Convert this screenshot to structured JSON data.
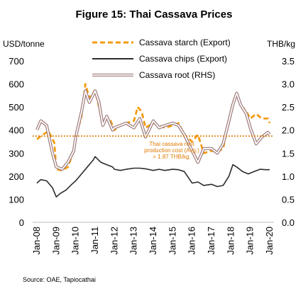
{
  "chart_data": {
    "type": "line",
    "title": "Figure 15: Thai Cassava Prices",
    "y_left_label": "USD/tonne",
    "y_right_label": "THB/kg",
    "ylim_left": [
      0,
      700
    ],
    "ylim_right": [
      0.0,
      3.5
    ],
    "left_ticks": [
      "0",
      "100",
      "200",
      "300",
      "400",
      "500",
      "600",
      "700"
    ],
    "right_ticks": [
      "0.0",
      "0.5",
      "1.0",
      "1.5",
      "2.0",
      "2.5",
      "3.0",
      "3.5"
    ],
    "x_ticks": [
      "Jan-08",
      "Jan-09",
      "Jan-10",
      "Jan-11",
      "Jan-12",
      "Jan-13",
      "Jan-14",
      "Jan-15",
      "Jan-16",
      "Jan-17",
      "Jan-18",
      "Jan-19",
      "Jan-20"
    ],
    "xlim": [
      "Jan-08",
      "Jan-20"
    ],
    "legend_position": "top-center",
    "series": [
      {
        "name": "Cassava starch (Export)",
        "axis": "left",
        "color": "#F39C12",
        "style": "dashed",
        "points": [
          [
            2008.0,
            360
          ],
          [
            2008.3,
            380
          ],
          [
            2008.6,
            395
          ],
          [
            2008.9,
            345
          ],
          [
            2009.0,
            230
          ],
          [
            2009.3,
            225
          ],
          [
            2009.6,
            240
          ],
          [
            2009.9,
            310
          ],
          [
            2010.0,
            370
          ],
          [
            2010.3,
            460
          ],
          [
            2010.5,
            600
          ],
          [
            2010.7,
            540
          ],
          [
            2011.0,
            570
          ],
          [
            2011.2,
            500
          ],
          [
            2011.4,
            420
          ],
          [
            2011.6,
            460
          ],
          [
            2011.8,
            440
          ],
          [
            2012.0,
            400
          ],
          [
            2012.3,
            420
          ],
          [
            2012.6,
            430
          ],
          [
            2013.0,
            440
          ],
          [
            2013.2,
            500
          ],
          [
            2013.4,
            480
          ],
          [
            2013.6,
            410
          ],
          [
            2014.0,
            430
          ],
          [
            2014.3,
            420
          ],
          [
            2014.6,
            410
          ],
          [
            2015.0,
            420
          ],
          [
            2015.3,
            430
          ],
          [
            2015.6,
            380
          ],
          [
            2016.0,
            350
          ],
          [
            2016.3,
            380
          ],
          [
            2016.6,
            300
          ],
          [
            2017.0,
            310
          ],
          [
            2017.3,
            305
          ],
          [
            2017.6,
            320
          ],
          [
            2017.9,
            440
          ],
          [
            2018.1,
            520
          ],
          [
            2018.3,
            560
          ],
          [
            2018.5,
            510
          ],
          [
            2018.8,
            480
          ],
          [
            2019.0,
            450
          ],
          [
            2019.3,
            470
          ],
          [
            2019.6,
            450
          ],
          [
            2019.9,
            450
          ],
          [
            2020.0,
            430
          ]
        ]
      },
      {
        "name": "Cassava chips (Export)",
        "axis": "left",
        "color": "#2b2b2b",
        "style": "solid",
        "points": [
          [
            2008.0,
            170
          ],
          [
            2008.2,
            185
          ],
          [
            2008.5,
            180
          ],
          [
            2008.8,
            150
          ],
          [
            2009.0,
            110
          ],
          [
            2009.2,
            125
          ],
          [
            2009.5,
            140
          ],
          [
            2009.8,
            165
          ],
          [
            2010.0,
            180
          ],
          [
            2010.3,
            210
          ],
          [
            2010.6,
            240
          ],
          [
            2010.9,
            270
          ],
          [
            2011.0,
            285
          ],
          [
            2011.3,
            260
          ],
          [
            2011.6,
            250
          ],
          [
            2011.9,
            240
          ],
          [
            2012.0,
            230
          ],
          [
            2012.3,
            225
          ],
          [
            2012.6,
            230
          ],
          [
            2013.0,
            235
          ],
          [
            2013.3,
            235
          ],
          [
            2013.6,
            232
          ],
          [
            2014.0,
            225
          ],
          [
            2014.3,
            230
          ],
          [
            2014.6,
            225
          ],
          [
            2015.0,
            230
          ],
          [
            2015.3,
            228
          ],
          [
            2015.6,
            220
          ],
          [
            2016.0,
            170
          ],
          [
            2016.3,
            175
          ],
          [
            2016.6,
            160
          ],
          [
            2017.0,
            165
          ],
          [
            2017.3,
            155
          ],
          [
            2017.6,
            160
          ],
          [
            2017.9,
            200
          ],
          [
            2018.1,
            250
          ],
          [
            2018.3,
            240
          ],
          [
            2018.6,
            220
          ],
          [
            2018.9,
            210
          ],
          [
            2019.2,
            220
          ],
          [
            2019.5,
            230
          ],
          [
            2019.8,
            228
          ],
          [
            2020.0,
            228
          ]
        ]
      },
      {
        "name": "Cassava root (RHS)",
        "axis": "right",
        "color": "#9E7A7A",
        "style": "double",
        "points": [
          [
            2008.0,
            2.0
          ],
          [
            2008.2,
            2.2
          ],
          [
            2008.5,
            2.1
          ],
          [
            2008.8,
            1.5
          ],
          [
            2009.0,
            1.2
          ],
          [
            2009.3,
            1.15
          ],
          [
            2009.6,
            1.3
          ],
          [
            2009.9,
            1.55
          ],
          [
            2010.0,
            1.85
          ],
          [
            2010.3,
            2.4
          ],
          [
            2010.5,
            2.85
          ],
          [
            2010.7,
            2.6
          ],
          [
            2011.0,
            2.85
          ],
          [
            2011.2,
            2.6
          ],
          [
            2011.4,
            2.1
          ],
          [
            2011.6,
            2.3
          ],
          [
            2011.9,
            2.0
          ],
          [
            2012.0,
            2.05
          ],
          [
            2012.3,
            2.1
          ],
          [
            2012.6,
            2.15
          ],
          [
            2013.0,
            2.05
          ],
          [
            2013.3,
            2.25
          ],
          [
            2013.6,
            1.85
          ],
          [
            2014.0,
            2.2
          ],
          [
            2014.3,
            2.05
          ],
          [
            2014.6,
            2.1
          ],
          [
            2015.0,
            2.15
          ],
          [
            2015.3,
            2.1
          ],
          [
            2015.6,
            1.9
          ],
          [
            2016.0,
            1.55
          ],
          [
            2016.3,
            1.3
          ],
          [
            2016.6,
            1.6
          ],
          [
            2017.0,
            1.6
          ],
          [
            2017.3,
            1.5
          ],
          [
            2017.6,
            1.7
          ],
          [
            2017.9,
            2.2
          ],
          [
            2018.1,
            2.55
          ],
          [
            2018.3,
            2.8
          ],
          [
            2018.5,
            2.55
          ],
          [
            2018.8,
            2.35
          ],
          [
            2019.0,
            2.05
          ],
          [
            2019.3,
            1.7
          ],
          [
            2019.6,
            1.85
          ],
          [
            2019.9,
            1.95
          ],
          [
            2020.0,
            1.9
          ]
        ]
      }
    ],
    "reference_line": {
      "axis": "right",
      "value": 1.87,
      "color": "#E07A00",
      "label_lines": [
        "Thai cassava root",
        "production cost (Avg.)",
        "= 1.87 THB/kg."
      ]
    },
    "source": "Source: OAE, Tapiocathai"
  }
}
